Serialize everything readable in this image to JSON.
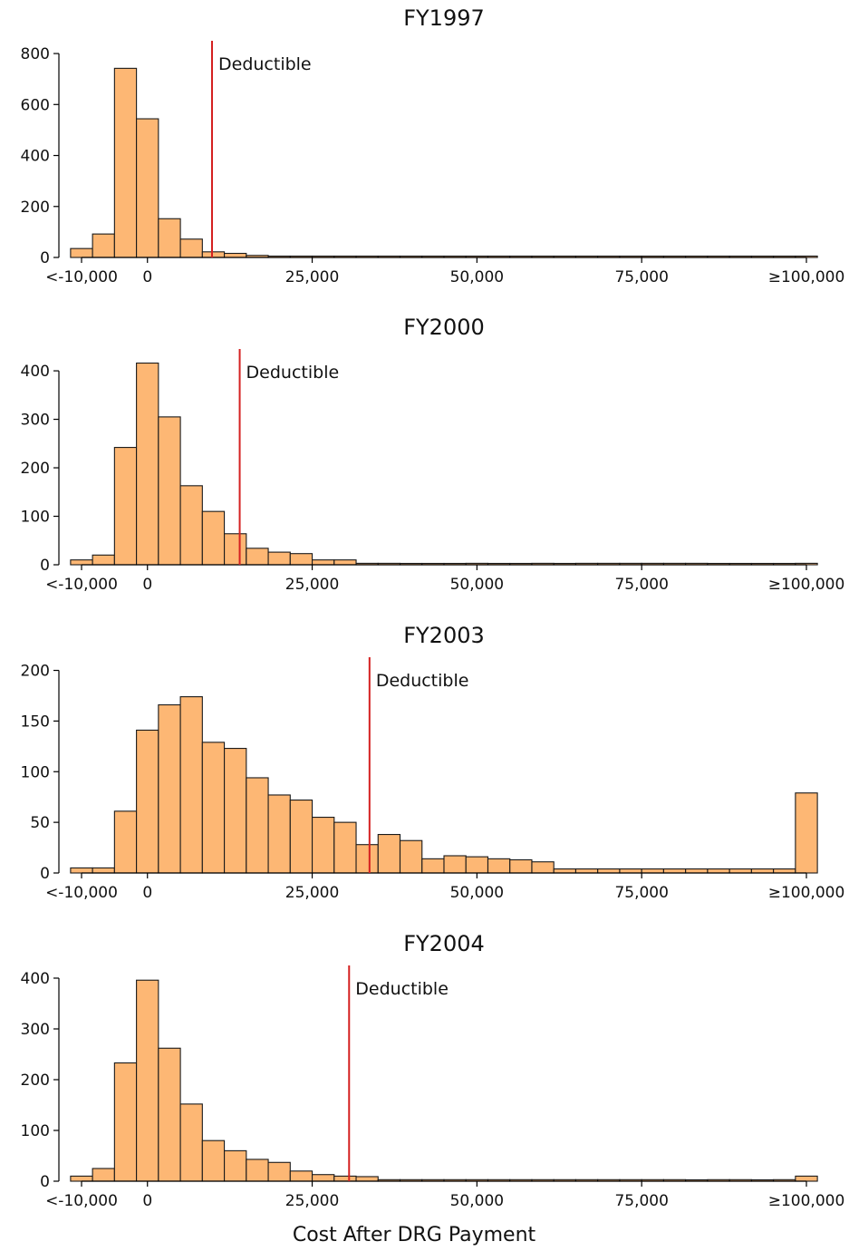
{
  "colors": {
    "bar_fill": "#FDB774",
    "bar_stroke": "#1a1a1a",
    "line": "#D42020",
    "axis": "#000000"
  },
  "shared": {
    "xlabel": "Cost After DRG Payment"
  },
  "chart_data": [
    {
      "type": "bar",
      "title": "FY1997",
      "xlabel": "",
      "ylabel": "",
      "bin_width": 3333,
      "x_range": [
        -10000,
        101000
      ],
      "xticks": [
        -10000,
        0,
        25000,
        50000,
        75000,
        100000
      ],
      "xtick_labels": [
        "<-10,000",
        "0",
        "25,000",
        "50,000",
        "75,000",
        "≥100,000"
      ],
      "ylim": [
        0,
        850
      ],
      "yticks": [
        0,
        200,
        400,
        600,
        800
      ],
      "ytick_labels": [
        "0",
        "200",
        "400",
        "600",
        "800"
      ],
      "bin_starts": [
        -11667,
        -8333,
        -5000,
        -1667,
        1667,
        5000,
        8333,
        11667,
        15000,
        18333,
        21667,
        25000,
        28333,
        31667,
        35000,
        38333,
        41667,
        45000,
        48333,
        51667,
        55000,
        58333,
        61667,
        65000,
        68333,
        71667,
        75000,
        78333,
        81667,
        85000,
        88333,
        91667,
        95000,
        98333
      ],
      "values": [
        35,
        92,
        742,
        544,
        152,
        72,
        22,
        16,
        8,
        4,
        3,
        2,
        2,
        2,
        2,
        1,
        2,
        2,
        2,
        2,
        1,
        2,
        1,
        1,
        2,
        1,
        1,
        1,
        1,
        1,
        2,
        1,
        1,
        4
      ],
      "grid": false,
      "annotations": [
        {
          "type": "vline",
          "x": 9800,
          "label": "Deductible"
        }
      ]
    },
    {
      "type": "bar",
      "title": "FY2000",
      "xlabel": "",
      "ylabel": "",
      "bin_width": 3333,
      "x_range": [
        -10000,
        101000
      ],
      "xticks": [
        -10000,
        0,
        25000,
        50000,
        75000,
        100000
      ],
      "xtick_labels": [
        "<-10,000",
        "0",
        "25,000",
        "50,000",
        "75,000",
        "≥100,000"
      ],
      "ylim": [
        0,
        445
      ],
      "yticks": [
        0,
        100,
        200,
        300,
        400
      ],
      "ytick_labels": [
        "0",
        "100",
        "200",
        "300",
        "400"
      ],
      "bin_starts": [
        -11667,
        -8333,
        -5000,
        -1667,
        1667,
        5000,
        8333,
        11667,
        15000,
        18333,
        21667,
        25000,
        28333,
        31667,
        35000,
        38333,
        41667,
        45000,
        48333,
        51667,
        55000,
        58333,
        61667,
        65000,
        68333,
        71667,
        75000,
        78333,
        81667,
        85000,
        88333,
        91667,
        95000,
        98333
      ],
      "values": [
        10,
        20,
        242,
        416,
        305,
        163,
        110,
        64,
        34,
        26,
        23,
        10,
        10,
        3,
        3,
        2,
        2,
        0,
        3,
        2,
        2,
        3,
        0,
        3,
        3,
        3,
        3,
        3,
        3,
        0,
        0,
        0,
        2,
        3
      ],
      "grid": false,
      "annotations": [
        {
          "type": "vline",
          "x": 14000,
          "label": "Deductible"
        }
      ]
    },
    {
      "type": "bar",
      "title": "FY2003",
      "xlabel": "",
      "ylabel": "",
      "bin_width": 3333,
      "x_range": [
        -10000,
        101000
      ],
      "xticks": [
        -10000,
        0,
        25000,
        50000,
        75000,
        100000
      ],
      "xtick_labels": [
        "<-10,000",
        "0",
        "25,000",
        "50,000",
        "75,000",
        "≥100,000"
      ],
      "ylim": [
        0,
        213
      ],
      "yticks": [
        0,
        50,
        100,
        150,
        200
      ],
      "ytick_labels": [
        "0",
        "50",
        "100",
        "150",
        "200"
      ],
      "bin_starts": [
        -11667,
        -8333,
        -5000,
        -1667,
        1667,
        5000,
        8333,
        11667,
        15000,
        18333,
        21667,
        25000,
        28333,
        31667,
        35000,
        38333,
        41667,
        45000,
        48333,
        51667,
        55000,
        58333,
        61667,
        65000,
        68333,
        71667,
        75000,
        78333,
        81667,
        85000,
        88333,
        91667,
        95000,
        98333
      ],
      "values": [
        5,
        5,
        61,
        141,
        166,
        174,
        129,
        123,
        94,
        77,
        72,
        55,
        50,
        28,
        38,
        32,
        14,
        17,
        16,
        14,
        13,
        11,
        4,
        4,
        4,
        4,
        4,
        4,
        4,
        4,
        4,
        4,
        4,
        79
      ],
      "grid": false,
      "annotations": [
        {
          "type": "vline",
          "x": 33700,
          "label": "Deductible"
        }
      ]
    },
    {
      "type": "bar",
      "title": "FY2004",
      "xlabel": "Cost After DRG Payment",
      "ylabel": "",
      "bin_width": 3333,
      "x_range": [
        -10000,
        101000
      ],
      "xticks": [
        -10000,
        0,
        25000,
        50000,
        75000,
        100000
      ],
      "xtick_labels": [
        "<-10,000",
        "0",
        "25,000",
        "50,000",
        "75,000",
        "≥100,000"
      ],
      "ylim": [
        0,
        425
      ],
      "yticks": [
        0,
        100,
        200,
        300,
        400
      ],
      "ytick_labels": [
        "0",
        "100",
        "200",
        "300",
        "400"
      ],
      "bin_starts": [
        -11667,
        -8333,
        -5000,
        -1667,
        1667,
        5000,
        8333,
        11667,
        15000,
        18333,
        21667,
        25000,
        28333,
        31667,
        35000,
        38333,
        41667,
        45000,
        48333,
        51667,
        55000,
        58333,
        61667,
        65000,
        68333,
        71667,
        75000,
        78333,
        81667,
        85000,
        88333,
        91667,
        95000,
        98333
      ],
      "values": [
        10,
        25,
        233,
        396,
        262,
        152,
        80,
        60,
        43,
        37,
        20,
        13,
        10,
        9,
        3,
        3,
        3,
        3,
        3,
        3,
        3,
        3,
        3,
        3,
        3,
        3,
        3,
        3,
        0,
        3,
        3,
        0,
        3,
        10
      ],
      "grid": false,
      "annotations": [
        {
          "type": "vline",
          "x": 30600,
          "label": "Deductible"
        }
      ]
    }
  ]
}
